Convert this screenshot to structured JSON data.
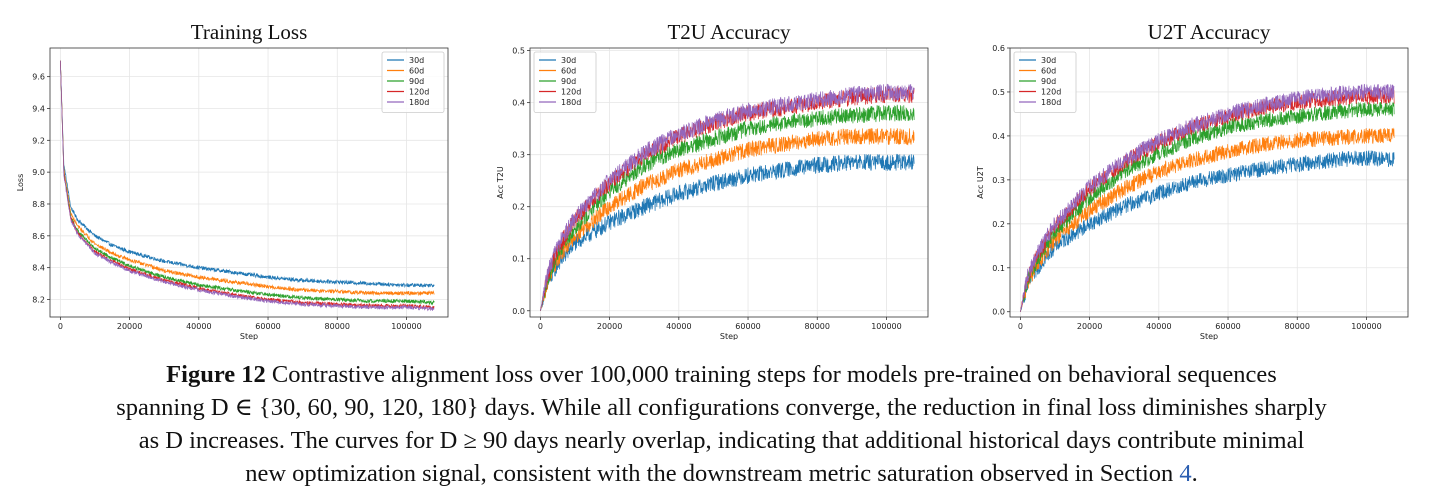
{
  "figure": {
    "label": "Figure 12",
    "caption_line1": "Contrastive alignment loss over 100,000 training steps for models pre-trained on behavioral sequences",
    "caption_line2": "spanning D ∈ {30, 60, 90, 120, 180} days. While all configurations converge, the reduction in final loss diminishes sharply",
    "caption_line3": "as D increases. The curves for D ≥ 90 days nearly overlap, indicating that additional historical days contribute minimal",
    "caption_line4_a": "new optimization signal, consistent with the downstream metric saturation observed in Section ",
    "caption_ref": "4",
    "caption_end": "."
  },
  "chart_data": [
    {
      "type": "line",
      "title": "Training Loss",
      "xlabel": "Step",
      "ylabel": "Loss",
      "xlim": [
        -3000,
        112000
      ],
      "ylim": [
        8.09,
        9.78
      ],
      "xticks": [
        0,
        20000,
        40000,
        60000,
        80000,
        100000
      ],
      "yticks": [
        8.2,
        8.4,
        8.6,
        8.8,
        9.0,
        9.2,
        9.4,
        9.6
      ],
      "ytick_labels": [
        "8.2",
        "8.4",
        "8.6",
        "8.8",
        "9.0",
        "9.2",
        "9.4",
        "9.6"
      ],
      "grid": true,
      "legend": "top-right",
      "series": [
        {
          "name": "30d",
          "color": "#1f77b4",
          "x": [
            0,
            1000,
            3000,
            5000,
            10000,
            15000,
            20000,
            30000,
            40000,
            50000,
            60000,
            70000,
            80000,
            90000,
            100000,
            108000
          ],
          "y": [
            9.7,
            9.05,
            8.78,
            8.7,
            8.6,
            8.54,
            8.5,
            8.44,
            8.4,
            8.37,
            8.34,
            8.32,
            8.31,
            8.3,
            8.29,
            8.29
          ]
        },
        {
          "name": "60d",
          "color": "#ff7f0e",
          "x": [
            0,
            1000,
            3000,
            5000,
            10000,
            15000,
            20000,
            30000,
            40000,
            50000,
            60000,
            70000,
            80000,
            90000,
            100000,
            108000
          ],
          "y": [
            9.7,
            9.02,
            8.74,
            8.66,
            8.55,
            8.49,
            8.45,
            8.38,
            8.34,
            8.31,
            8.28,
            8.26,
            8.25,
            8.24,
            8.24,
            8.24
          ]
        },
        {
          "name": "90d",
          "color": "#2ca02c",
          "x": [
            0,
            1000,
            3000,
            5000,
            10000,
            15000,
            20000,
            30000,
            40000,
            50000,
            60000,
            70000,
            80000,
            90000,
            100000,
            108000
          ],
          "y": [
            9.7,
            9.0,
            8.72,
            8.63,
            8.52,
            8.46,
            8.41,
            8.34,
            8.29,
            8.26,
            8.23,
            8.21,
            8.2,
            8.19,
            8.19,
            8.18
          ]
        },
        {
          "name": "120d",
          "color": "#d62728",
          "x": [
            0,
            1000,
            3000,
            5000,
            10000,
            15000,
            20000,
            30000,
            40000,
            50000,
            60000,
            70000,
            80000,
            90000,
            100000,
            108000
          ],
          "y": [
            9.7,
            8.99,
            8.71,
            8.62,
            8.5,
            8.44,
            8.39,
            8.32,
            8.27,
            8.23,
            8.2,
            8.18,
            8.17,
            8.16,
            8.16,
            8.15
          ]
        },
        {
          "name": "180d",
          "color": "#9467bd",
          "x": [
            0,
            1000,
            3000,
            5000,
            10000,
            15000,
            20000,
            30000,
            40000,
            50000,
            60000,
            70000,
            80000,
            90000,
            100000,
            108000
          ],
          "y": [
            9.7,
            8.98,
            8.7,
            8.61,
            8.49,
            8.43,
            8.38,
            8.31,
            8.26,
            8.22,
            8.19,
            8.17,
            8.16,
            8.15,
            8.15,
            8.14
          ]
        }
      ],
      "noise": 0.012
    },
    {
      "type": "line",
      "title": "T2U Accuracy",
      "xlabel": "Step",
      "ylabel": "Acc T2U",
      "xlim": [
        -3000,
        112000
      ],
      "ylim": [
        -0.012,
        0.505
      ],
      "xticks": [
        0,
        20000,
        40000,
        60000,
        80000,
        100000
      ],
      "yticks": [
        0.0,
        0.1,
        0.2,
        0.3,
        0.4,
        0.5
      ],
      "ytick_labels": [
        "0.0",
        "0.1",
        "0.2",
        "0.3",
        "0.4",
        "0.5"
      ],
      "grid": true,
      "legend": "top-left",
      "series": [
        {
          "name": "30d",
          "color": "#1f77b4",
          "x": [
            0,
            2000,
            5000,
            10000,
            20000,
            30000,
            40000,
            50000,
            60000,
            70000,
            80000,
            90000,
            100000,
            108000
          ],
          "y": [
            0.0,
            0.05,
            0.09,
            0.13,
            0.17,
            0.2,
            0.225,
            0.245,
            0.26,
            0.27,
            0.28,
            0.285,
            0.285,
            0.285
          ]
        },
        {
          "name": "60d",
          "color": "#ff7f0e",
          "x": [
            0,
            2000,
            5000,
            10000,
            20000,
            30000,
            40000,
            50000,
            60000,
            70000,
            80000,
            90000,
            100000,
            108000
          ],
          "y": [
            0.0,
            0.055,
            0.1,
            0.145,
            0.2,
            0.24,
            0.27,
            0.29,
            0.31,
            0.32,
            0.33,
            0.335,
            0.335,
            0.335
          ]
        },
        {
          "name": "90d",
          "color": "#2ca02c",
          "x": [
            0,
            2000,
            5000,
            10000,
            20000,
            30000,
            40000,
            50000,
            60000,
            70000,
            80000,
            90000,
            100000,
            108000
          ],
          "y": [
            0.0,
            0.06,
            0.11,
            0.16,
            0.23,
            0.28,
            0.31,
            0.33,
            0.35,
            0.36,
            0.37,
            0.375,
            0.38,
            0.38
          ]
        },
        {
          "name": "120d",
          "color": "#d62728",
          "x": [
            0,
            2000,
            5000,
            10000,
            20000,
            30000,
            40000,
            50000,
            60000,
            70000,
            80000,
            90000,
            100000,
            108000
          ],
          "y": [
            0.0,
            0.065,
            0.12,
            0.175,
            0.245,
            0.3,
            0.335,
            0.36,
            0.38,
            0.39,
            0.4,
            0.41,
            0.415,
            0.415
          ]
        },
        {
          "name": "180d",
          "color": "#9467bd",
          "x": [
            0,
            2000,
            5000,
            10000,
            20000,
            30000,
            40000,
            50000,
            60000,
            70000,
            80000,
            90000,
            100000,
            108000
          ],
          "y": [
            0.0,
            0.07,
            0.125,
            0.18,
            0.25,
            0.305,
            0.34,
            0.365,
            0.385,
            0.395,
            0.405,
            0.415,
            0.42,
            0.42
          ]
        }
      ],
      "noise": 0.016
    },
    {
      "type": "line",
      "title": "U2T Accuracy",
      "xlabel": "Step",
      "ylabel": "Acc U2T",
      "xlim": [
        -3000,
        112000
      ],
      "ylim": [
        -0.012,
        0.6
      ],
      "xticks": [
        0,
        20000,
        40000,
        60000,
        80000,
        100000
      ],
      "yticks": [
        0.0,
        0.1,
        0.2,
        0.3,
        0.4,
        0.5,
        0.6
      ],
      "ytick_labels": [
        "0.0",
        "0.1",
        "0.2",
        "0.3",
        "0.4",
        "0.5",
        "0.6"
      ],
      "grid": true,
      "legend": "top-left",
      "series": [
        {
          "name": "30d",
          "color": "#1f77b4",
          "x": [
            0,
            2000,
            5000,
            10000,
            20000,
            30000,
            40000,
            50000,
            60000,
            70000,
            80000,
            90000,
            100000,
            108000
          ],
          "y": [
            0.0,
            0.06,
            0.1,
            0.15,
            0.2,
            0.24,
            0.27,
            0.295,
            0.31,
            0.325,
            0.335,
            0.345,
            0.35,
            0.345
          ]
        },
        {
          "name": "60d",
          "color": "#ff7f0e",
          "x": [
            0,
            2000,
            5000,
            10000,
            20000,
            30000,
            40000,
            50000,
            60000,
            70000,
            80000,
            90000,
            100000,
            108000
          ],
          "y": [
            0.0,
            0.065,
            0.11,
            0.165,
            0.23,
            0.28,
            0.32,
            0.345,
            0.365,
            0.38,
            0.39,
            0.395,
            0.4,
            0.4
          ]
        },
        {
          "name": "90d",
          "color": "#2ca02c",
          "x": [
            0,
            2000,
            5000,
            10000,
            20000,
            30000,
            40000,
            50000,
            60000,
            70000,
            80000,
            90000,
            100000,
            108000
          ],
          "y": [
            0.0,
            0.07,
            0.12,
            0.18,
            0.26,
            0.32,
            0.36,
            0.395,
            0.42,
            0.435,
            0.445,
            0.455,
            0.46,
            0.46
          ]
        },
        {
          "name": "120d",
          "color": "#d62728",
          "x": [
            0,
            2000,
            5000,
            10000,
            20000,
            30000,
            40000,
            50000,
            60000,
            70000,
            80000,
            90000,
            100000,
            108000
          ],
          "y": [
            0.0,
            0.075,
            0.13,
            0.195,
            0.28,
            0.34,
            0.385,
            0.42,
            0.445,
            0.465,
            0.475,
            0.485,
            0.49,
            0.49
          ]
        },
        {
          "name": "180d",
          "color": "#9467bd",
          "x": [
            0,
            2000,
            5000,
            10000,
            20000,
            30000,
            40000,
            50000,
            60000,
            70000,
            80000,
            90000,
            100000,
            108000
          ],
          "y": [
            0.0,
            0.08,
            0.135,
            0.2,
            0.285,
            0.345,
            0.39,
            0.425,
            0.45,
            0.47,
            0.485,
            0.495,
            0.5,
            0.5
          ]
        }
      ],
      "noise": 0.018
    }
  ]
}
